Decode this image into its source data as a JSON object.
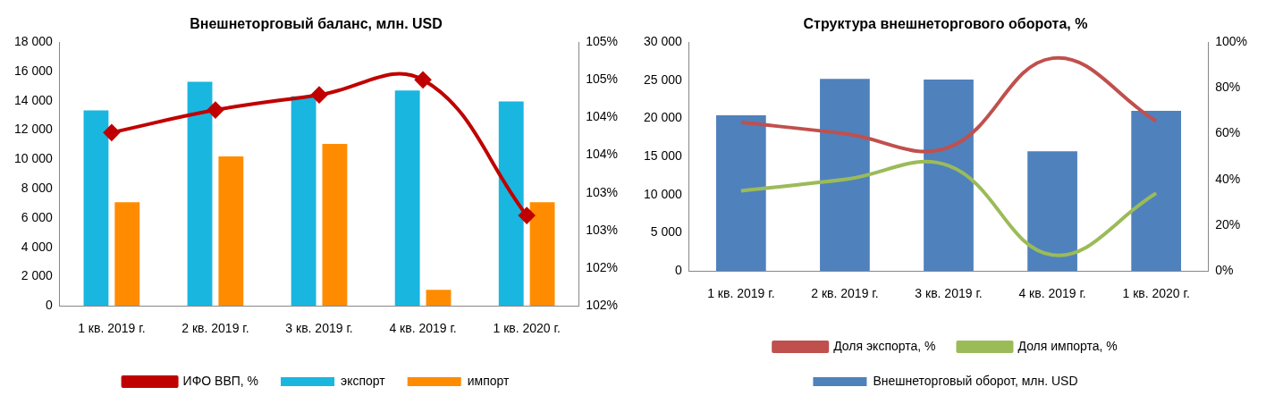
{
  "chart_data": [
    {
      "type": "bar",
      "title": "Внешнеторговый баланс, млн. USD",
      "categories": [
        "1 кв. 2019 г.",
        "2 кв. 2019 г.",
        "3 кв. 2019 г.",
        "4 кв. 2019 г.",
        "1 кв. 2020 г."
      ],
      "series": [
        {
          "name": "экспорт",
          "color": "#19b6e0",
          "values": [
            13350,
            15300,
            14300,
            14700,
            13950
          ]
        },
        {
          "name": "импорт",
          "color": "#ff8c00",
          "values": [
            7070,
            10200,
            11050,
            1090,
            7070
          ]
        },
        {
          "name": "ИФО ВВП, %",
          "type": "line",
          "axis": "y2",
          "color": "#c00000",
          "marker": "diamond",
          "values": [
            103.8,
            104.1,
            104.3,
            104.5,
            102.7
          ]
        }
      ],
      "ylim": [
        0,
        18000
      ],
      "yticks": [
        {
          "value": 0,
          "label": "0"
        },
        {
          "value": 2000,
          "label": "2 000"
        },
        {
          "value": 4000,
          "label": "4 000"
        },
        {
          "value": 6000,
          "label": "6 000"
        },
        {
          "value": 8000,
          "label": "8 000"
        },
        {
          "value": 10000,
          "label": "10 000"
        },
        {
          "value": 12000,
          "label": "12 000"
        },
        {
          "value": 14000,
          "label": "14 000"
        },
        {
          "value": 16000,
          "label": "16 000"
        },
        {
          "value": 18000,
          "label": "18 000"
        }
      ],
      "y2lim": [
        101.5,
        105
      ],
      "y2ticks": [
        {
          "value": 101.5,
          "label": "102%"
        },
        {
          "value": 102,
          "label": "102%"
        },
        {
          "value": 102.5,
          "label": "103%"
        },
        {
          "value": 103,
          "label": "103%"
        },
        {
          "value": 103.5,
          "label": "104%"
        },
        {
          "value": 104,
          "label": "104%"
        },
        {
          "value": 104.5,
          "label": "105%"
        },
        {
          "value": 105,
          "label": "105%"
        }
      ],
      "grid": false,
      "legend": "bottom"
    },
    {
      "type": "bar",
      "title": "Структура внешнеторгового оборота, %",
      "categories": [
        "1 кв. 2019 г.",
        "2 кв. 2019 г.",
        "3 кв. 2019 г.",
        "4 кв. 2019 г.",
        "1 кв. 2020 г."
      ],
      "series": [
        {
          "name": "Внешнеторговый оборот, млн. USD",
          "color": "#4f81bd",
          "values": [
            20400,
            25200,
            25100,
            15700,
            21000
          ]
        },
        {
          "name": "Доля экспорта, %",
          "type": "line",
          "axis": "y2",
          "color": "#c0504d",
          "values": [
            65,
            60,
            54,
            93,
            65.5
          ]
        },
        {
          "name": "Доля импорта, %",
          "type": "line",
          "axis": "y2",
          "color": "#9bbb59",
          "values": [
            35,
            40,
            46,
            7,
            34
          ]
        }
      ],
      "ylim": [
        0,
        30000
      ],
      "yticks": [
        {
          "value": 0,
          "label": "0"
        },
        {
          "value": 5000,
          "label": "5 000"
        },
        {
          "value": 10000,
          "label": "10 000"
        },
        {
          "value": 15000,
          "label": "15 000"
        },
        {
          "value": 20000,
          "label": "20 000"
        },
        {
          "value": 25000,
          "label": "25 000"
        },
        {
          "value": 30000,
          "label": "30 000"
        }
      ],
      "y2lim": [
        0,
        100
      ],
      "y2ticks": [
        {
          "value": 0,
          "label": "0%"
        },
        {
          "value": 20,
          "label": "20%"
        },
        {
          "value": 40,
          "label": "40%"
        },
        {
          "value": 60,
          "label": "60%"
        },
        {
          "value": 80,
          "label": "80%"
        },
        {
          "value": 100,
          "label": "100%"
        }
      ],
      "grid": false,
      "legend": "bottom"
    }
  ]
}
